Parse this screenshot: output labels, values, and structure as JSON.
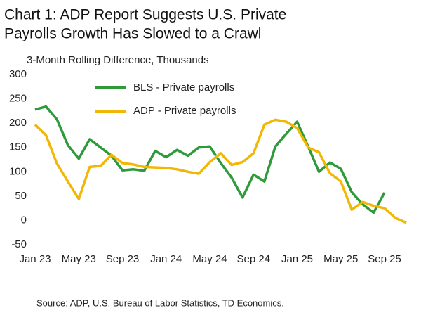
{
  "chart_data": {
    "type": "line",
    "title": [
      "Chart 1: ADP Report Suggests U.S. Private",
      "Payrolls Growth Has Slowed to a Crawl"
    ],
    "subtitle": "3-Month Rolling Difference, Thousands",
    "source": "Source: ADP, U.S. Bureau of Labor Statistics, TD Economics.",
    "categories": [
      "Jan 23",
      null,
      null,
      null,
      "May 23",
      null,
      null,
      null,
      "Sep 23",
      null,
      null,
      null,
      "Jan 24",
      null,
      null,
      null,
      "May 24",
      null,
      null,
      null,
      "Sep 24",
      null,
      null,
      null,
      "Jan 25",
      null,
      null,
      null,
      "May 25",
      null,
      null,
      null,
      "Sep 25",
      null,
      null
    ],
    "series": [
      {
        "name": "BLS - Private payrolls",
        "color": "#2e9a3a",
        "values": [
          228,
          234,
          208,
          155,
          127,
          167,
          150,
          133,
          103,
          105,
          102,
          143,
          130,
          145,
          133,
          150,
          152,
          118,
          88,
          47,
          94,
          80,
          152,
          178,
          203,
          152,
          100,
          119,
          106,
          58,
          33,
          16,
          57,
          null,
          null
        ]
      },
      {
        "name": "ADP - Private payrolls",
        "color": "#f2b705",
        "values": [
          197,
          175,
          117,
          80,
          44,
          110,
          112,
          135,
          118,
          115,
          110,
          109,
          108,
          105,
          100,
          96,
          120,
          138,
          114,
          120,
          138,
          197,
          207,
          203,
          190,
          150,
          140,
          97,
          80,
          22,
          38,
          30,
          25,
          5,
          -5
        ]
      }
    ],
    "ylim": [
      -50,
      300
    ],
    "yticks": [
      -50,
      0,
      50,
      100,
      150,
      200,
      250,
      300
    ],
    "grid": false
  }
}
